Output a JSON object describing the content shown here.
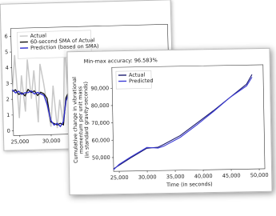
{
  "chart_data": [
    {
      "type": "line",
      "x": [
        24000,
        24500,
        25000,
        25500,
        26000,
        26500,
        27000,
        27500,
        28000,
        28500,
        29000,
        29500,
        30000,
        30500,
        31000,
        31500,
        32000,
        32500,
        33000,
        33500,
        34000,
        34500,
        35000
      ],
      "series": [
        {
          "name": "Actual",
          "color": "#c8c8c8",
          "values": [
            2.5,
            4.8,
            0.8,
            3.5,
            1.2,
            4.5,
            2.0,
            3.8,
            0.5,
            4.2,
            3.0,
            1.5,
            0.2,
            2.8,
            0.1,
            1.9,
            0.3,
            5.5,
            1.0,
            4.6,
            2.2,
            5.0,
            3.0
          ]
        },
        {
          "name": "60-second SMA of Actual",
          "color": "#111111",
          "values": [
            2.5,
            2.6,
            2.3,
            2.4,
            2.2,
            2.6,
            2.4,
            2.5,
            2.2,
            2.4,
            2.3,
            2.0,
            0.5,
            0.4,
            0.3,
            0.4,
            0.3,
            2.0,
            2.4,
            2.6,
            2.5,
            2.7,
            2.6
          ]
        },
        {
          "name": "Prediction (based on SMA)",
          "color": "#2a2acf",
          "values": [
            2.6,
            2.4,
            2.5,
            2.3,
            2.4,
            2.4,
            2.5,
            2.3,
            2.4,
            2.3,
            2.2,
            1.6,
            0.6,
            0.3,
            0.4,
            0.2,
            0.5,
            1.8,
            2.3,
            2.5,
            2.6,
            2.5,
            2.5
          ]
        }
      ],
      "xlim": [
        24000,
        49000
      ],
      "ylim": [
        -0.3,
        6.5
      ],
      "xticks": [
        {
          "value": 25000,
          "label": "25,000"
        },
        {
          "value": 30000,
          "label": "30,000"
        }
      ],
      "yticks": [
        0,
        1,
        2,
        3,
        4,
        5,
        6
      ]
    },
    {
      "type": "line",
      "title": "Min-max accuracy: 96.583%",
      "xlabel": "Time (in seconds)",
      "ylabel": [
        "Cumulative change in vibrational",
        "momentum per unit mass",
        "(in standard gravity-seconds)"
      ],
      "x": [
        24000,
        25000,
        27000,
        30000,
        32000,
        33000,
        36000,
        39000,
        42000,
        45000,
        48000,
        49000
      ],
      "series": [
        {
          "name": "Actual",
          "color": "#1a1a6e",
          "values": [
            43500,
            45500,
            49500,
            55000,
            55500,
            57000,
            62000,
            69000,
            76000,
            83500,
            91000,
            96500
          ]
        },
        {
          "name": "Predicted",
          "color": "#3b3bd6",
          "values": [
            43000,
            46000,
            50000,
            55500,
            55000,
            56000,
            61000,
            68000,
            75500,
            83500,
            90000,
            95000
          ]
        }
      ],
      "xlim": [
        24000,
        51000
      ],
      "ylim": [
        42000,
        102000
      ],
      "xticks": [
        {
          "value": 25000,
          "label": "25,000"
        },
        {
          "value": 30000,
          "label": "30,000"
        },
        {
          "value": 35000,
          "label": "35,000"
        },
        {
          "value": 40000,
          "label": "40,000"
        },
        {
          "value": 45000,
          "label": "45,000"
        },
        {
          "value": 50000,
          "label": "50,000"
        }
      ],
      "yticks": [
        {
          "value": 50000,
          "label": "50,000"
        },
        {
          "value": 60000,
          "label": "60,000"
        },
        {
          "value": 70000,
          "label": "70,000"
        },
        {
          "value": 80000,
          "label": "80,000"
        },
        {
          "value": 90000,
          "label": "90,000"
        }
      ]
    }
  ]
}
